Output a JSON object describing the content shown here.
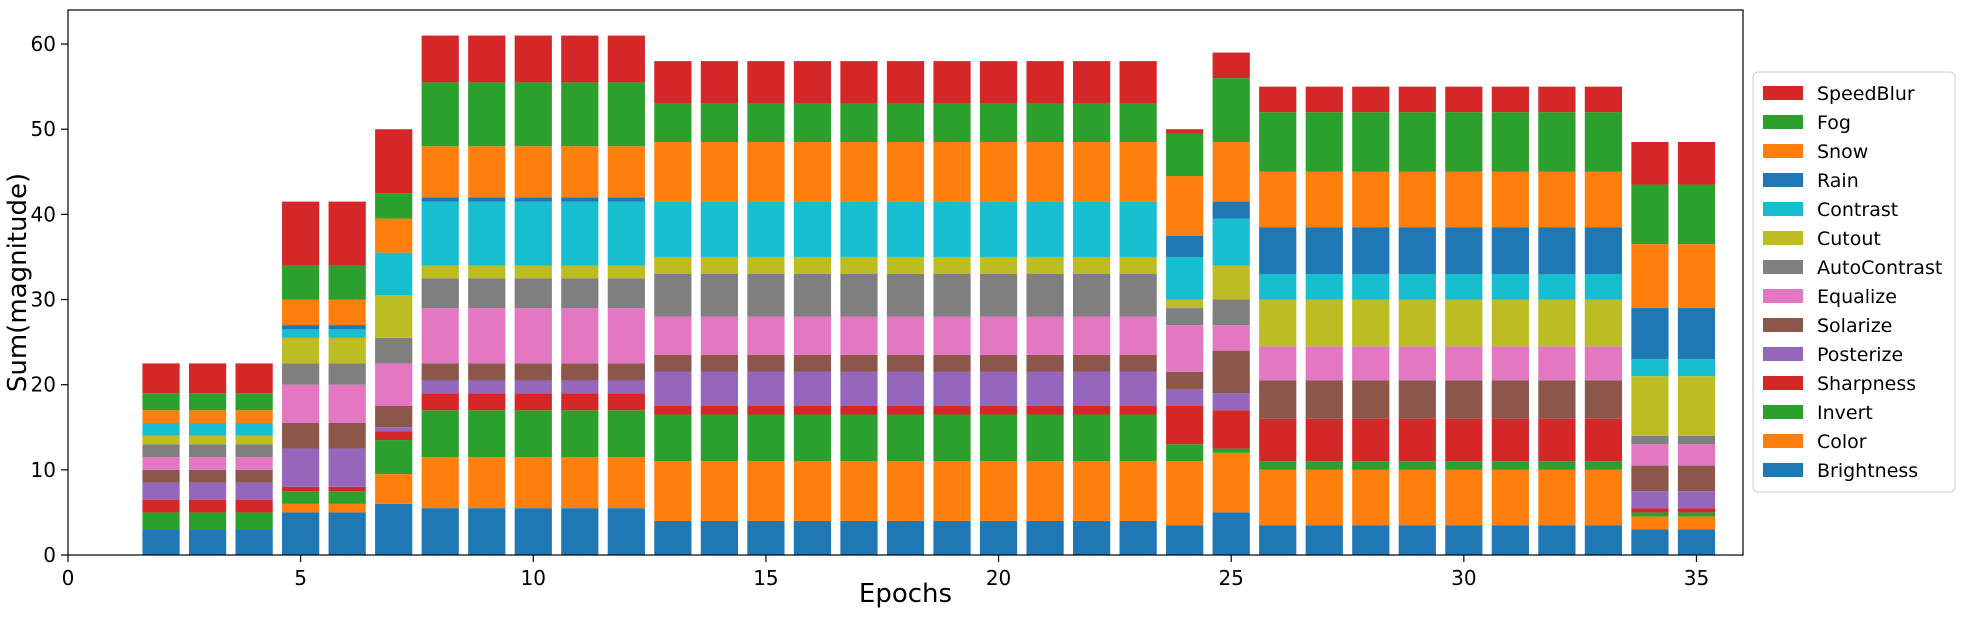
{
  "chart_data": {
    "type": "bar",
    "stacked": true,
    "xlabel": "Epochs",
    "ylabel": "Sum(magnitude)",
    "xlim": [
      0,
      36
    ],
    "ylim": [
      0,
      64
    ],
    "x_ticks": [
      0,
      5,
      10,
      15,
      20,
      25,
      30,
      35
    ],
    "y_ticks": [
      0,
      10,
      20,
      30,
      40,
      50,
      60
    ],
    "legend_position": "right",
    "x": [
      2,
      3,
      4,
      5,
      6,
      7,
      8,
      9,
      10,
      11,
      12,
      13,
      14,
      15,
      16,
      17,
      18,
      19,
      20,
      21,
      22,
      23,
      24,
      25,
      26,
      27,
      28,
      29,
      30,
      31,
      32,
      33,
      34,
      35
    ],
    "series": [
      {
        "name": "Brightness",
        "color": "#1f77b4",
        "values": [
          3,
          3,
          3,
          5,
          5,
          6,
          5.5,
          5.5,
          5.5,
          5.5,
          5.5,
          4,
          4,
          4,
          4,
          4,
          4,
          4,
          4,
          4,
          4,
          4,
          3.5,
          5,
          3.5,
          3.5,
          3.5,
          3.5,
          3.5,
          3.5,
          3.5,
          3.5,
          3,
          3
        ]
      },
      {
        "name": "Color",
        "color": "#ff7f0e",
        "values": [
          0,
          0,
          0,
          1,
          1,
          3.5,
          6,
          6,
          6,
          6,
          6,
          7,
          7,
          7,
          7,
          7,
          7,
          7,
          7,
          7,
          7,
          7,
          7.5,
          7,
          6.5,
          6.5,
          6.5,
          6.5,
          6.5,
          6.5,
          6.5,
          6.5,
          1.5,
          1.5
        ]
      },
      {
        "name": "Invert",
        "color": "#2ca02c",
        "values": [
          2,
          2,
          2,
          1.5,
          1.5,
          4,
          5.5,
          5.5,
          5.5,
          5.5,
          5.5,
          5.5,
          5.5,
          5.5,
          5.5,
          5.5,
          5.5,
          5.5,
          5.5,
          5.5,
          5.5,
          5.5,
          2,
          0.5,
          1,
          1,
          1,
          1,
          1,
          1,
          1,
          1,
          0.5,
          0.5
        ]
      },
      {
        "name": "Sharpness",
        "color": "#d62728",
        "values": [
          1.5,
          1.5,
          1.5,
          0.5,
          0.5,
          1,
          2,
          2,
          2,
          2,
          2,
          1,
          1,
          1,
          1,
          1,
          1,
          1,
          1,
          1,
          1,
          1,
          4.5,
          4.5,
          5,
          5,
          5,
          5,
          5,
          5,
          5,
          5,
          0.5,
          0.5
        ]
      },
      {
        "name": "Posterize",
        "color": "#9467bd",
        "values": [
          2,
          2,
          2,
          4.5,
          4.5,
          0.5,
          1.5,
          1.5,
          1.5,
          1.5,
          1.5,
          4,
          4,
          4,
          4,
          4,
          4,
          4,
          4,
          4,
          4,
          4,
          2,
          2,
          0,
          0,
          0,
          0,
          0,
          0,
          0,
          0,
          2,
          2
        ]
      },
      {
        "name": "Solarize",
        "color": "#8c564b",
        "values": [
          1.5,
          1.5,
          1.5,
          3,
          3,
          2.5,
          2,
          2,
          2,
          2,
          2,
          2,
          2,
          2,
          2,
          2,
          2,
          2,
          2,
          2,
          2,
          2,
          2,
          5,
          4.5,
          4.5,
          4.5,
          4.5,
          4.5,
          4.5,
          4.5,
          4.5,
          3,
          3
        ]
      },
      {
        "name": "Equalize",
        "color": "#e377c2",
        "values": [
          1.5,
          1.5,
          1.5,
          4.5,
          4.5,
          5,
          6.5,
          6.5,
          6.5,
          6.5,
          6.5,
          4.5,
          4.5,
          4.5,
          4.5,
          4.5,
          4.5,
          4.5,
          4.5,
          4.5,
          4.5,
          4.5,
          5.5,
          3,
          4,
          4,
          4,
          4,
          4,
          4,
          4,
          4,
          2.5,
          2.5
        ]
      },
      {
        "name": "AutoContrast",
        "color": "#7f7f7f",
        "values": [
          1.5,
          1.5,
          1.5,
          2.5,
          2.5,
          3,
          3.5,
          3.5,
          3.5,
          3.5,
          3.5,
          5,
          5,
          5,
          5,
          5,
          5,
          5,
          5,
          5,
          5,
          5,
          2,
          3,
          0,
          0,
          0,
          0,
          0,
          0,
          0,
          0,
          1,
          1
        ]
      },
      {
        "name": "Cutout",
        "color": "#bcbd22",
        "values": [
          1,
          1,
          1,
          3,
          3,
          5,
          1.5,
          1.5,
          1.5,
          1.5,
          1.5,
          2,
          2,
          2,
          2,
          2,
          2,
          2,
          2,
          2,
          2,
          2,
          1,
          4,
          5.5,
          5.5,
          5.5,
          5.5,
          5.5,
          5.5,
          5.5,
          5.5,
          7,
          7
        ]
      },
      {
        "name": "Contrast",
        "color": "#17becf",
        "values": [
          1.5,
          1.5,
          1.5,
          1,
          1,
          5,
          7.5,
          7.5,
          7.5,
          7.5,
          7.5,
          6.5,
          6.5,
          6.5,
          6.5,
          6.5,
          6.5,
          6.5,
          6.5,
          6.5,
          6.5,
          6.5,
          5,
          5.5,
          3,
          3,
          3,
          3,
          3,
          3,
          3,
          3,
          2,
          2
        ]
      },
      {
        "name": "Rain",
        "color": "#1f77b4",
        "values": [
          0,
          0,
          0,
          0.5,
          0.5,
          0,
          0.5,
          0.5,
          0.5,
          0.5,
          0.5,
          0,
          0,
          0,
          0,
          0,
          0,
          0,
          0,
          0,
          0,
          0,
          2.5,
          2,
          5.5,
          5.5,
          5.5,
          5.5,
          5.5,
          5.5,
          5.5,
          5.5,
          6,
          6
        ]
      },
      {
        "name": "Snow",
        "color": "#ff7f0e",
        "values": [
          1.5,
          1.5,
          1.5,
          3,
          3,
          4,
          6,
          6,
          6,
          6,
          6,
          7,
          7,
          7,
          7,
          7,
          7,
          7,
          7,
          7,
          7,
          7,
          7,
          7,
          6.5,
          6.5,
          6.5,
          6.5,
          6.5,
          6.5,
          6.5,
          6.5,
          7.5,
          7.5
        ]
      },
      {
        "name": "Fog",
        "color": "#2ca02c",
        "values": [
          2,
          2,
          2,
          4,
          4,
          3,
          7.5,
          7.5,
          7.5,
          7.5,
          7.5,
          4.5,
          4.5,
          4.5,
          4.5,
          4.5,
          4.5,
          4.5,
          4.5,
          4.5,
          4.5,
          4.5,
          5,
          7.5,
          7,
          7,
          7,
          7,
          7,
          7,
          7,
          7,
          7,
          7
        ]
      },
      {
        "name": "SpeedBlur",
        "color": "#d62728",
        "values": [
          3.5,
          3.5,
          3.5,
          7.5,
          7.5,
          7.5,
          5.5,
          5.5,
          5.5,
          5.5,
          5.5,
          5,
          5,
          5,
          5,
          5,
          5,
          5,
          5,
          5,
          5,
          5,
          0.5,
          3,
          3,
          3,
          3,
          3,
          3,
          3,
          3,
          3,
          5,
          5
        ]
      }
    ]
  }
}
